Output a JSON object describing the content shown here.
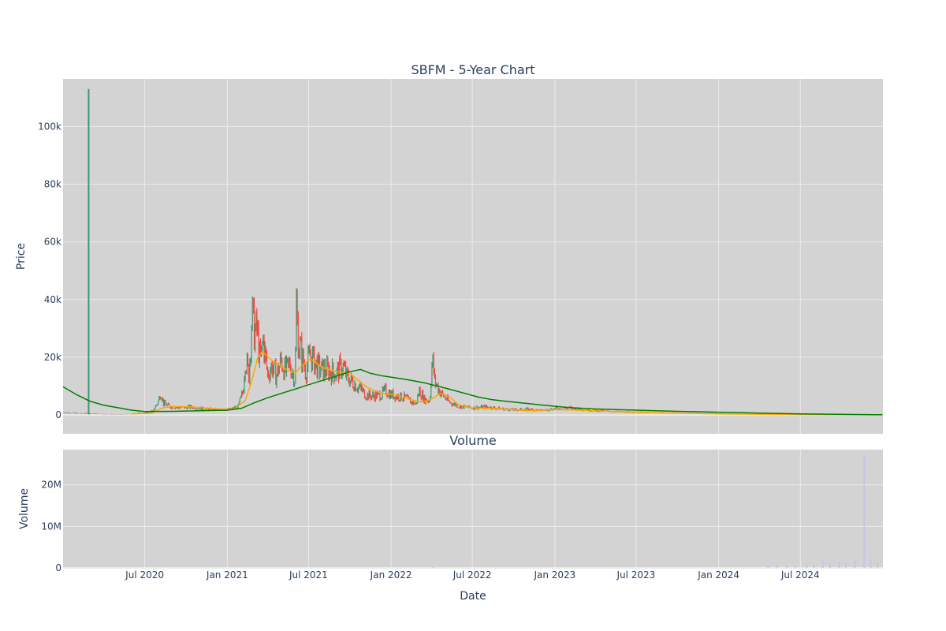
{
  "chart_data": [
    {
      "type": "candlestick",
      "title": "SBFM - 5-Year Chart",
      "xlabel": "",
      "ylabel": "Price",
      "ylim": [
        -6500,
        116500
      ],
      "xlim": [
        "2020-01-01",
        "2025-01-01"
      ],
      "yticks": [
        {
          "value": 0,
          "label": "0"
        },
        {
          "value": 20000,
          "label": "20k"
        },
        {
          "value": 40000,
          "label": "40k"
        },
        {
          "value": 60000,
          "label": "60k"
        },
        {
          "value": 80000,
          "label": "80k"
        },
        {
          "value": 100000,
          "label": "100k"
        }
      ],
      "grid": true,
      "colors": {
        "plot_bg": "#d3d3d3",
        "grid": "#ebebeb",
        "up": "#3d9970",
        "down": "#ff4136",
        "ma_short": "#ffa500",
        "ma_long": "#008000"
      },
      "price_path": [
        [
          "2020-01-01",
          900
        ],
        [
          "2020-01-20",
          700
        ],
        [
          "2020-02-10",
          500
        ],
        [
          "2020-02-27",
          600
        ],
        [
          "2020-03-15",
          400
        ],
        [
          "2020-04-10",
          300
        ],
        [
          "2020-05-15",
          200
        ],
        [
          "2020-06-10",
          600
        ],
        [
          "2020-07-01",
          700
        ],
        [
          "2020-07-20",
          1500
        ],
        [
          "2020-08-01",
          5000
        ],
        [
          "2020-08-05",
          8200
        ],
        [
          "2020-08-12",
          4000
        ],
        [
          "2020-08-25",
          3000
        ],
        [
          "2020-09-15",
          2500
        ],
        [
          "2020-10-15",
          2800
        ],
        [
          "2020-11-15",
          2000
        ],
        [
          "2020-12-15",
          1800
        ],
        [
          "2021-01-10",
          2000
        ],
        [
          "2021-01-25",
          3000
        ],
        [
          "2021-02-05",
          8000
        ],
        [
          "2021-02-10",
          20000
        ],
        [
          "2021-02-18",
          14000
        ],
        [
          "2021-02-25",
          35000
        ],
        [
          "2021-03-03",
          28000
        ],
        [
          "2021-03-08",
          30000
        ],
        [
          "2021-03-15",
          18000
        ],
        [
          "2021-03-22",
          26000
        ],
        [
          "2021-04-01",
          14000
        ],
        [
          "2021-04-10",
          17000
        ],
        [
          "2021-04-20",
          13500
        ],
        [
          "2021-05-01",
          19000
        ],
        [
          "2021-05-10",
          15000
        ],
        [
          "2021-05-20",
          17500
        ],
        [
          "2021-06-01",
          12500
        ],
        [
          "2021-06-04",
          37000
        ],
        [
          "2021-06-08",
          26000
        ],
        [
          "2021-06-15",
          21000
        ],
        [
          "2021-06-25",
          15000
        ],
        [
          "2021-07-05",
          21000
        ],
        [
          "2021-07-15",
          18000
        ],
        [
          "2021-07-25",
          16000
        ],
        [
          "2021-08-10",
          15500
        ],
        [
          "2021-09-01",
          14500
        ],
        [
          "2021-09-15",
          17000
        ],
        [
          "2021-09-25",
          13000
        ],
        [
          "2021-10-10",
          11000
        ],
        [
          "2021-10-25",
          9000
        ],
        [
          "2021-11-05",
          7000
        ],
        [
          "2021-11-20",
          6500
        ],
        [
          "2021-12-10",
          7000
        ],
        [
          "2021-12-20",
          8500
        ],
        [
          "2022-01-01",
          7000
        ],
        [
          "2022-01-15",
          6500
        ],
        [
          "2022-02-01",
          6000
        ],
        [
          "2022-02-15",
          4500
        ],
        [
          "2022-02-25",
          3800
        ],
        [
          "2022-03-05",
          8500
        ],
        [
          "2022-03-15",
          5500
        ],
        [
          "2022-03-28",
          5000
        ],
        [
          "2022-04-03",
          19500
        ],
        [
          "2022-04-08",
          12000
        ],
        [
          "2022-04-20",
          8000
        ],
        [
          "2022-05-10",
          4500
        ],
        [
          "2022-06-01",
          3000
        ],
        [
          "2022-07-01",
          2500
        ],
        [
          "2022-08-01",
          2800
        ],
        [
          "2022-09-01",
          2200
        ],
        [
          "2022-10-01",
          1800
        ],
        [
          "2022-11-01",
          2000
        ],
        [
          "2022-12-01",
          1600
        ],
        [
          "2023-01-01",
          2200
        ],
        [
          "2023-02-01",
          2500
        ],
        [
          "2023-03-01",
          2000
        ],
        [
          "2023-04-01",
          1500
        ],
        [
          "2023-05-15",
          1200
        ],
        [
          "2023-06-15",
          1000
        ],
        [
          "2023-08-01",
          900
        ],
        [
          "2023-10-01",
          700
        ],
        [
          "2024-01-01",
          500
        ],
        [
          "2024-04-01",
          300
        ],
        [
          "2024-07-01",
          200
        ],
        [
          "2024-12-31",
          100
        ]
      ],
      "series": [
        {
          "values": [
            [
              "2020-06-01",
              400
            ],
            [
              "2020-07-15",
              600
            ],
            [
              "2020-08-10",
              2500
            ],
            [
              "2020-09-01",
              3000
            ],
            [
              "2020-10-15",
              2800
            ],
            [
              "2020-12-01",
              2200
            ],
            [
              "2021-01-15",
              2000
            ],
            [
              "2021-02-10",
              5000
            ],
            [
              "2021-02-25",
              12000
            ],
            [
              "2021-03-10",
              20000
            ],
            [
              "2021-03-20",
              22000
            ],
            [
              "2021-04-10",
              19000
            ],
            [
              "2021-05-10",
              16000
            ],
            [
              "2021-06-01",
              14500
            ],
            [
              "2021-06-15",
              17000
            ],
            [
              "2021-07-05",
              19500
            ],
            [
              "2021-08-01",
              16500
            ],
            [
              "2021-09-01",
              15000
            ],
            [
              "2021-10-01",
              14500
            ],
            [
              "2021-10-20",
              12000
            ],
            [
              "2021-11-10",
              9500
            ],
            [
              "2021-12-10",
              7500
            ],
            [
              "2022-01-10",
              7000
            ],
            [
              "2022-02-10",
              5500
            ],
            [
              "2022-03-10",
              4500
            ],
            [
              "2022-04-01",
              5500
            ],
            [
              "2022-04-20",
              7500
            ],
            [
              "2022-05-10",
              6500
            ],
            [
              "2022-06-01",
              3500
            ],
            [
              "2022-07-01",
              2500
            ],
            [
              "2022-09-01",
              2200
            ],
            [
              "2022-11-01",
              1500
            ],
            [
              "2023-01-01",
              1900
            ],
            [
              "2023-03-01",
              1700
            ],
            [
              "2023-06-01",
              1100
            ],
            [
              "2023-10-01",
              700
            ],
            [
              "2024-01-01",
              400
            ],
            [
              "2024-07-01",
              200
            ],
            [
              "2024-12-31",
              100
            ]
          ]
        },
        {
          "values": [
            [
              "2020-01-01",
              9800
            ],
            [
              "2020-02-01",
              7000
            ],
            [
              "2020-03-01",
              4800
            ],
            [
              "2020-04-01",
              3400
            ],
            [
              "2020-05-01",
              2600
            ],
            [
              "2020-06-01",
              1700
            ],
            [
              "2020-07-01",
              1200
            ],
            [
              "2020-09-01",
              1300
            ],
            [
              "2020-11-01",
              1500
            ],
            [
              "2021-01-01",
              1700
            ],
            [
              "2021-02-01",
              2300
            ],
            [
              "2021-03-01",
              4200
            ],
            [
              "2021-04-01",
              6000
            ],
            [
              "2021-05-01",
              7500
            ],
            [
              "2021-06-01",
              9000
            ],
            [
              "2021-07-01",
              10500
            ],
            [
              "2021-08-01",
              12000
            ],
            [
              "2021-09-01",
              13500
            ],
            [
              "2021-10-01",
              15000
            ],
            [
              "2021-10-25",
              15800
            ],
            [
              "2021-11-15",
              14500
            ],
            [
              "2021-12-15",
              13500
            ],
            [
              "2022-01-15",
              12800
            ],
            [
              "2022-02-15",
              12000
            ],
            [
              "2022-03-15",
              11200
            ],
            [
              "2022-04-15",
              10000
            ],
            [
              "2022-05-15",
              8800
            ],
            [
              "2022-06-15",
              7500
            ],
            [
              "2022-07-15",
              6200
            ],
            [
              "2022-08-15",
              5300
            ],
            [
              "2022-10-01",
              4500
            ],
            [
              "2022-12-01",
              3500
            ],
            [
              "2023-02-01",
              2600
            ],
            [
              "2023-04-01",
              2100
            ],
            [
              "2023-07-01",
              1700
            ],
            [
              "2023-10-01",
              1300
            ],
            [
              "2024-01-01",
              1000
            ],
            [
              "2024-04-01",
              700
            ],
            [
              "2024-07-01",
              400
            ],
            [
              "2024-12-31",
              100
            ]
          ]
        }
      ],
      "spike": {
        "date": "2020-02-27",
        "high": 113000,
        "low": 200
      }
    },
    {
      "type": "bar",
      "title": "Volume",
      "xlabel": "Date",
      "ylabel": "Volume",
      "ylim": [
        0,
        28500000
      ],
      "yticks": [
        {
          "value": 0,
          "label": "0"
        },
        {
          "value": 10000000,
          "label": "10M"
        },
        {
          "value": 20000000,
          "label": "20M"
        }
      ],
      "xticks": [
        {
          "date": "2020-07-01",
          "label": "Jul 2020"
        },
        {
          "date": "2021-01-01",
          "label": "Jan 2021"
        },
        {
          "date": "2021-07-01",
          "label": "Jul 2021"
        },
        {
          "date": "2022-01-01",
          "label": "Jan 2022"
        },
        {
          "date": "2022-07-01",
          "label": "Jul 2022"
        },
        {
          "date": "2023-01-01",
          "label": "Jan 2023"
        },
        {
          "date": "2023-07-01",
          "label": "Jul 2023"
        },
        {
          "date": "2024-01-01",
          "label": "Jan 2024"
        },
        {
          "date": "2024-07-01",
          "label": "Jul 2024"
        }
      ],
      "grid": true,
      "colors": {
        "bar": "#c7c7e6"
      },
      "values": [
        [
          "2022-04-05",
          200000
        ],
        [
          "2024-04-20",
          500000
        ],
        [
          "2024-05-10",
          1000000
        ],
        [
          "2024-06-01",
          800000
        ],
        [
          "2024-06-20",
          600000
        ],
        [
          "2024-07-15",
          1200000
        ],
        [
          "2024-08-01",
          900000
        ],
        [
          "2024-08-20",
          2000000
        ],
        [
          "2024-09-05",
          1100000
        ],
        [
          "2024-09-25",
          1500000
        ],
        [
          "2024-10-10",
          1300000
        ],
        [
          "2024-10-30",
          1800000
        ],
        [
          "2024-11-20",
          27500000
        ],
        [
          "2024-12-05",
          2200000
        ],
        [
          "2024-12-20",
          1400000
        ]
      ]
    }
  ]
}
